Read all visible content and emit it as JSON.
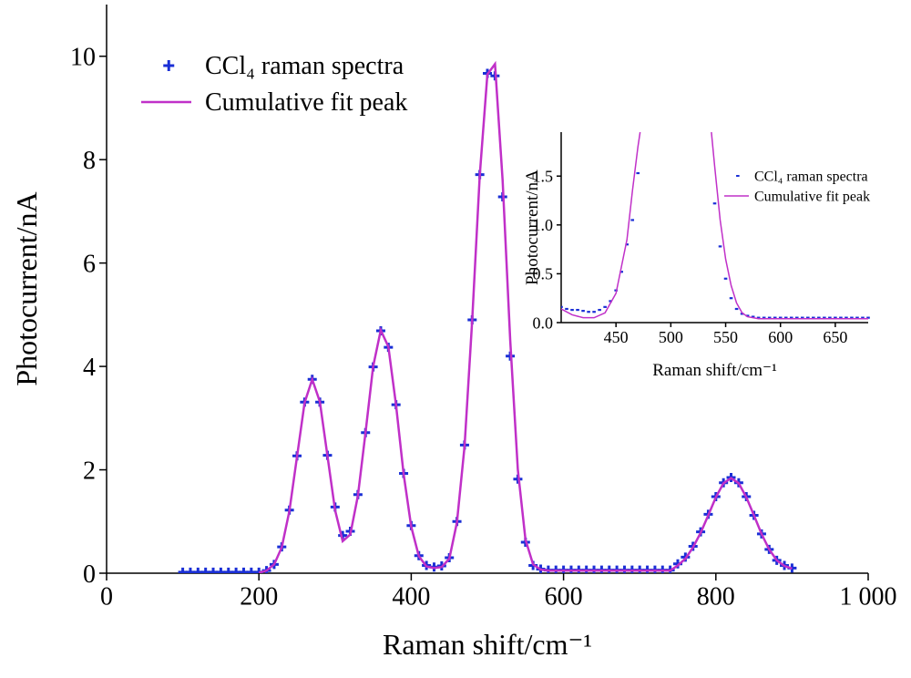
{
  "chart_data": [
    {
      "type": "scatter",
      "x_label": "Raman shift/cm⁻¹",
      "y_label": "Photocurrent/nA",
      "xlim": [
        0,
        1000
      ],
      "ylim": [
        0,
        11
      ],
      "xticks": [
        0,
        200,
        400,
        600,
        800,
        {
          "value": 1000,
          "label": "1 000"
        }
      ],
      "yticks": [
        0,
        2,
        4,
        6,
        8,
        10
      ],
      "legend": "upper left",
      "series": [
        {
          "name": "CCl₄ raman spectra",
          "mode": "markers",
          "color": "#1a2fd6",
          "x": [
            100,
            110,
            120,
            130,
            140,
            150,
            160,
            170,
            180,
            190,
            200,
            210,
            220,
            230,
            240,
            250,
            260,
            270,
            280,
            290,
            300,
            310,
            320,
            330,
            340,
            350,
            360,
            370,
            380,
            390,
            400,
            410,
            420,
            430,
            440,
            450,
            460,
            470,
            480,
            490,
            500,
            510,
            520,
            530,
            540,
            550,
            560,
            570,
            580,
            590,
            600,
            610,
            620,
            630,
            640,
            650,
            660,
            670,
            680,
            690,
            700,
            710,
            720,
            730,
            740,
            750,
            760,
            770,
            780,
            790,
            800,
            810,
            820,
            830,
            840,
            850,
            860,
            870,
            880,
            890,
            900
          ],
          "values": [
            0.02,
            0.02,
            0.02,
            0.02,
            0.02,
            0.02,
            0.02,
            0.02,
            0.02,
            0.02,
            0.02,
            0.05,
            0.17,
            0.51,
            1.22,
            2.27,
            3.31,
            3.75,
            3.31,
            2.28,
            1.28,
            0.73,
            0.81,
            1.52,
            2.72,
            3.99,
            4.69,
            4.37,
            3.26,
            1.93,
            0.92,
            0.34,
            0.15,
            0.12,
            0.14,
            0.3,
            1.0,
            2.48,
            4.9,
            7.71,
            9.67,
            9.62,
            7.28,
            4.2,
            1.82,
            0.6,
            0.15,
            0.08,
            0.06,
            0.06,
            0.06,
            0.06,
            0.06,
            0.06,
            0.06,
            0.06,
            0.06,
            0.06,
            0.06,
            0.06,
            0.06,
            0.06,
            0.06,
            0.06,
            0.06,
            0.18,
            0.31,
            0.52,
            0.8,
            1.14,
            1.48,
            1.75,
            1.85,
            1.75,
            1.48,
            1.12,
            0.76,
            0.46,
            0.25,
            0.15,
            0.1
          ]
        },
        {
          "name": "Cumulative fit peak",
          "mode": "line",
          "color": "#c030c8",
          "x": [
            200,
            210,
            220,
            230,
            240,
            250,
            260,
            270,
            280,
            290,
            300,
            310,
            320,
            330,
            340,
            350,
            360,
            370,
            380,
            390,
            400,
            410,
            420,
            430,
            440,
            450,
            460,
            470,
            480,
            490,
            500,
            510,
            520,
            530,
            540,
            550,
            560,
            570,
            580,
            590,
            600,
            610,
            620,
            630,
            640,
            650,
            660,
            670,
            680,
            690,
            700,
            710,
            720,
            730,
            740,
            750,
            760,
            770,
            780,
            790,
            800,
            810,
            820,
            830,
            840,
            850,
            860,
            870,
            880,
            890,
            900
          ],
          "values": [
            0.01,
            0.05,
            0.17,
            0.5,
            1.2,
            2.25,
            3.3,
            3.75,
            3.32,
            2.27,
            1.22,
            0.62,
            0.75,
            1.5,
            2.72,
            4.0,
            4.7,
            4.38,
            3.26,
            1.92,
            0.9,
            0.33,
            0.13,
            0.1,
            0.12,
            0.28,
            0.98,
            2.45,
            4.88,
            7.7,
            9.65,
            9.85,
            7.6,
            4.5,
            2.0,
            0.65,
            0.17,
            0.07,
            0.05,
            0.05,
            0.05,
            0.05,
            0.05,
            0.05,
            0.05,
            0.05,
            0.05,
            0.05,
            0.05,
            0.05,
            0.05,
            0.05,
            0.05,
            0.05,
            0.05,
            0.15,
            0.28,
            0.5,
            0.78,
            1.12,
            1.47,
            1.74,
            1.84,
            1.74,
            1.47,
            1.12,
            0.76,
            0.46,
            0.25,
            0.14,
            0.09
          ]
        }
      ]
    },
    {
      "type": "scatter",
      "x_label": "Raman shift/cm⁻¹",
      "y_label": "Photocurrent/nA",
      "xlim": [
        400,
        680
      ],
      "ylim": [
        0,
        1.95
      ],
      "xticks": [
        450,
        500,
        550,
        600,
        650
      ],
      "yticks": [
        {
          "value": 0,
          "label": "0.0"
        },
        0.5,
        {
          "value": 1,
          "label": "1.0"
        },
        1.5
      ],
      "legend": "right",
      "series": [
        {
          "name": "CCl₄ raman spectra",
          "mode": "markers",
          "color": "#1a2fd6",
          "x": [
            400,
            405,
            410,
            415,
            420,
            425,
            430,
            435,
            440,
            445,
            450,
            455,
            460,
            465,
            470,
            540,
            545,
            550,
            555,
            560,
            565,
            570,
            575,
            580,
            585,
            590,
            595,
            600,
            605,
            610,
            615,
            620,
            625,
            630,
            635,
            640,
            645,
            650,
            655,
            660,
            665,
            670,
            675,
            680
          ],
          "values": [
            0.16,
            0.14,
            0.13,
            0.13,
            0.12,
            0.11,
            0.11,
            0.13,
            0.16,
            0.22,
            0.33,
            0.52,
            0.8,
            1.05,
            1.53,
            1.22,
            0.78,
            0.45,
            0.25,
            0.14,
            0.09,
            0.07,
            0.06,
            0.05,
            0.05,
            0.05,
            0.05,
            0.05,
            0.05,
            0.05,
            0.05,
            0.05,
            0.05,
            0.05,
            0.05,
            0.05,
            0.05,
            0.05,
            0.05,
            0.05,
            0.05,
            0.05,
            0.05,
            0.05
          ]
        },
        {
          "name": "Cumulative fit peak",
          "mode": "line",
          "color": "#c030c8",
          "x": [
            400,
            410,
            420,
            430,
            440,
            450,
            460,
            465,
            470,
            472,
            500,
            537,
            540,
            545,
            550,
            555,
            560,
            565,
            570,
            580,
            600,
            620,
            640,
            660,
            680
          ],
          "values": [
            0.14,
            0.08,
            0.05,
            0.05,
            0.1,
            0.3,
            0.85,
            1.35,
            1.8,
            1.95,
            null,
            1.95,
            1.6,
            1.05,
            0.65,
            0.38,
            0.2,
            0.1,
            0.06,
            0.04,
            0.04,
            0.04,
            0.04,
            0.04,
            0.04
          ]
        }
      ]
    }
  ]
}
